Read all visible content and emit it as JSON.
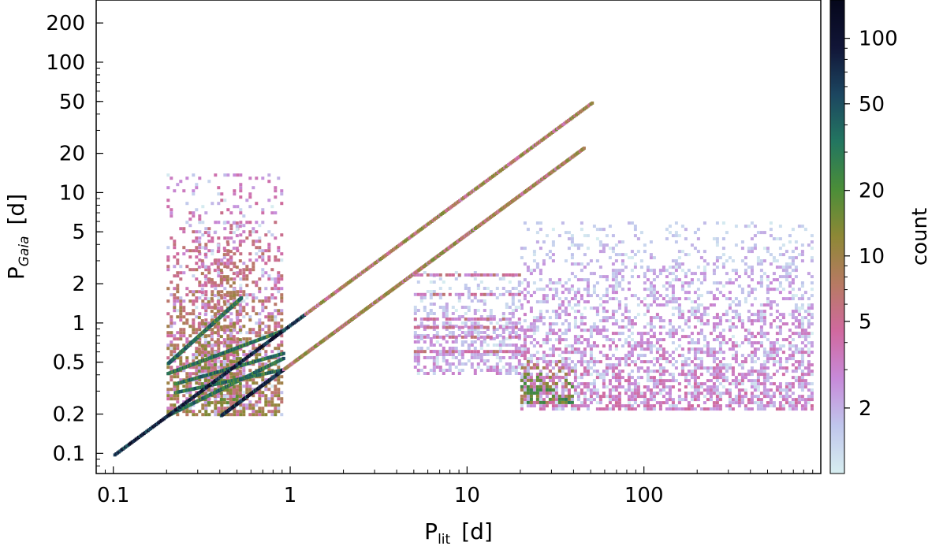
{
  "chart_data": {
    "type": "heatmap",
    "xlabel": {
      "main": "P",
      "sub": "lit",
      "unit": "[d]"
    },
    "ylabel": {
      "main": "P",
      "sub": "Gaia",
      "unit": "[d]"
    },
    "x_scale": "log",
    "y_scale": "log",
    "xlim": [
      0.08,
      1000
    ],
    "ylim": [
      0.07,
      300
    ],
    "x_ticks": [
      {
        "value": 0.1,
        "label": "0.1"
      },
      {
        "value": 1,
        "label": "1"
      },
      {
        "value": 10,
        "label": "10"
      },
      {
        "value": 100,
        "label": "100"
      }
    ],
    "y_ticks": [
      {
        "value": 0.1,
        "label": "0.1"
      },
      {
        "value": 0.2,
        "label": "0.2"
      },
      {
        "value": 0.5,
        "label": "0.5"
      },
      {
        "value": 1,
        "label": "1"
      },
      {
        "value": 2,
        "label": "2"
      },
      {
        "value": 5,
        "label": "5"
      },
      {
        "value": 10,
        "label": "10"
      },
      {
        "value": 20,
        "label": "20"
      },
      {
        "value": 50,
        "label": "50"
      },
      {
        "value": 100,
        "label": "100"
      },
      {
        "value": 200,
        "label": "200"
      }
    ],
    "colorbar": {
      "label": "count",
      "scale": "log",
      "range": [
        1,
        150
      ],
      "ticks": [
        {
          "value": 2,
          "label": "2"
        },
        {
          "value": 5,
          "label": "5"
        },
        {
          "value": 10,
          "label": "10"
        },
        {
          "value": 20,
          "label": "20"
        },
        {
          "value": 50,
          "label": "50"
        },
        {
          "value": 100,
          "label": "100"
        }
      ],
      "colormap": [
        "#d7eef0",
        "#c0c6ec",
        "#c78ad9",
        "#d0699f",
        "#b77a63",
        "#8e8836",
        "#4b8e38",
        "#237660",
        "#1c4660",
        "#111537",
        "#05071b"
      ]
    },
    "features": {
      "identity_line": {
        "x_range": [
          0.1,
          50
        ],
        "ratio": 1.0
      },
      "half_ratio_line": {
        "x_range": [
          0.4,
          45
        ],
        "ratio": 1.0
      },
      "alias_lines": [
        {
          "x_range": [
            0.2,
            0.52
          ],
          "y_at_start": 0.5,
          "y_at_end": 1.6
        },
        {
          "x_range": [
            0.2,
            0.9
          ],
          "y_at_start": 0.42,
          "y_at_end": 0.9
        },
        {
          "x_range": [
            0.22,
            0.9
          ],
          "y_at_start": 0.35,
          "y_at_end": 0.6
        },
        {
          "x_range": [
            0.22,
            0.9
          ],
          "y_at_start": 0.3,
          "y_at_end": 0.45
        },
        {
          "x_range": [
            0.2,
            0.9
          ],
          "y_at_start": 0.2,
          "y_at_end": 0.55
        }
      ],
      "clouds": [
        {
          "x_range": [
            0.2,
            0.9
          ],
          "y_range": [
            0.2,
            14
          ],
          "density": 10
        },
        {
          "x_range": [
            0.3,
            0.52
          ],
          "y_range": [
            0.25,
            6
          ],
          "density": 14
        },
        {
          "x_range": [
            20,
            900
          ],
          "y_range": [
            0.22,
            6
          ],
          "density": 3
        },
        {
          "x_range": [
            20,
            40
          ],
          "y_range": [
            0.25,
            0.55
          ],
          "density": 25
        },
        {
          "x_range": [
            5,
            20
          ],
          "y_range": [
            0.4,
            2.5
          ],
          "density": 2
        }
      ],
      "horizontal_streaks": [
        {
          "x_range": [
            5,
            20
          ],
          "y": 2.4
        },
        {
          "x_range": [
            5,
            20
          ],
          "y": 1.7
        },
        {
          "x_range": [
            5,
            20
          ],
          "y": 1.1
        },
        {
          "x_range": [
            5,
            20
          ],
          "y": 0.95
        },
        {
          "x_range": [
            5,
            20
          ],
          "y": 0.8
        },
        {
          "x_range": [
            5,
            20
          ],
          "y": 0.62
        }
      ]
    }
  }
}
